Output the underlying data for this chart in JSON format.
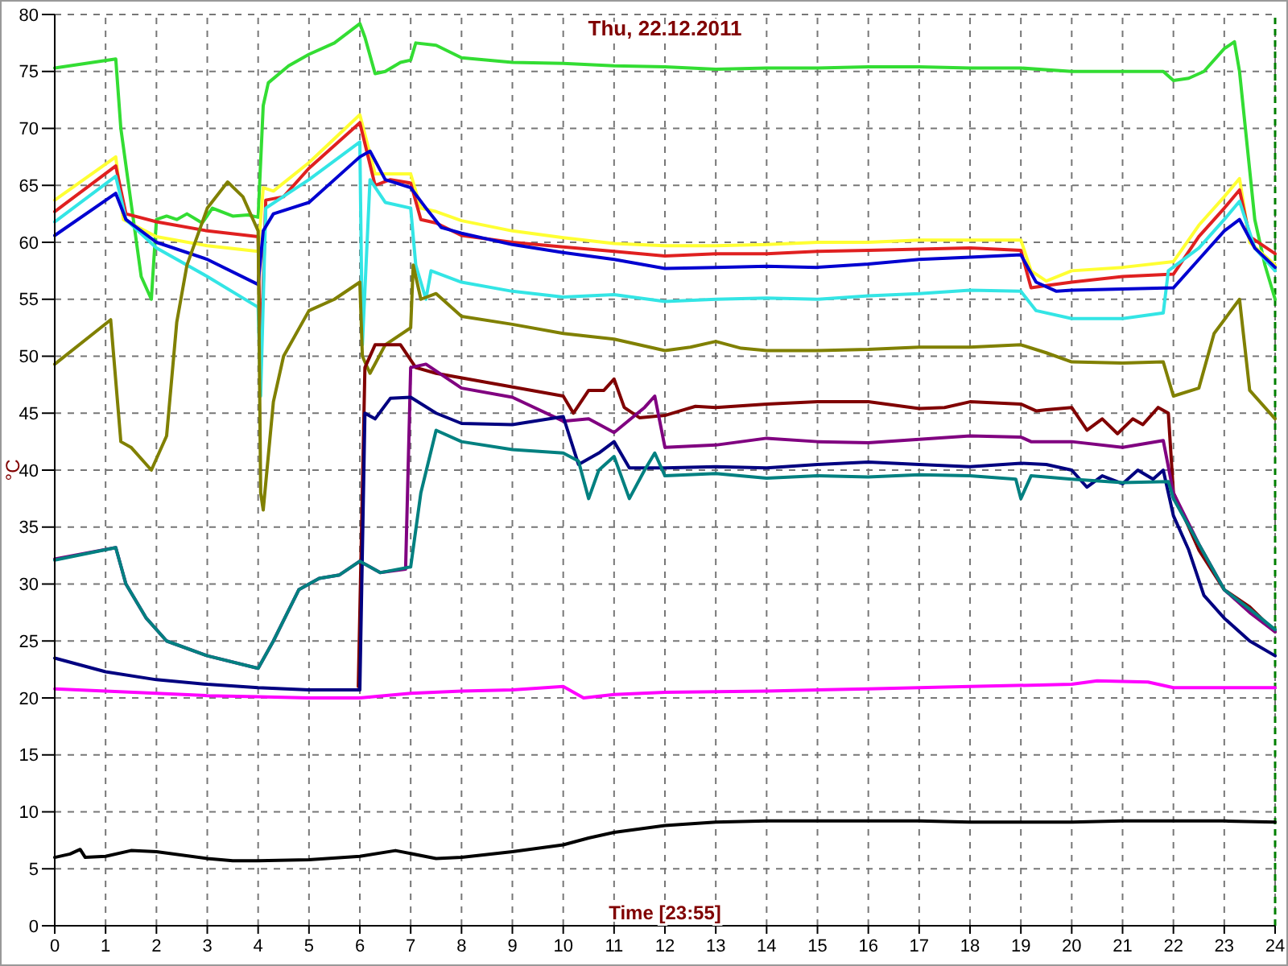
{
  "chart_data": {
    "type": "line",
    "title": "Thu, 22.12.2011",
    "xlabel": "Time [23:55]",
    "ylabel": "°C",
    "xlim": [
      0,
      24
    ],
    "ylim": [
      0,
      80
    ],
    "xticks": [
      0,
      1,
      2,
      3,
      4,
      5,
      6,
      7,
      8,
      9,
      10,
      11,
      12,
      13,
      14,
      15,
      16,
      17,
      18,
      19,
      20,
      21,
      22,
      23,
      24
    ],
    "yticks": [
      0,
      5,
      10,
      15,
      20,
      25,
      30,
      35,
      40,
      45,
      50,
      55,
      60,
      65,
      70,
      75,
      80
    ],
    "grid": true,
    "line_style": "solid",
    "marker": "none",
    "ref_lines": [
      {
        "axis": "x",
        "value": 24,
        "color": "#008000",
        "line_style": "dashed"
      }
    ],
    "series": [
      {
        "color": "#33dd33",
        "x": [
          0,
          1.2,
          1.3,
          1.7,
          1.9,
          2,
          2.2,
          2.4,
          2.6,
          2.9,
          3.1,
          3.5,
          3.8,
          4,
          4.1,
          4.2,
          4.6,
          5,
          5.5,
          6,
          6.1,
          6.3,
          6.5,
          6.8,
          7,
          7.1,
          7.5,
          8,
          9,
          10,
          11,
          12,
          13,
          14,
          15,
          16,
          17,
          18,
          19,
          20,
          21,
          21.8,
          22,
          22.3,
          22.6,
          23,
          23.2,
          23.3,
          23.6,
          23.8,
          24
        ],
        "values": [
          75.3,
          76.1,
          70,
          57,
          55,
          62,
          62.3,
          62,
          62.5,
          61.7,
          63,
          62.3,
          62.4,
          62.2,
          72,
          74,
          75.5,
          76.5,
          77.5,
          79.2,
          78,
          74.8,
          75,
          75.8,
          76,
          77.5,
          77.3,
          76.2,
          75.8,
          75.7,
          75.5,
          75.4,
          75.2,
          75.3,
          75.3,
          75.4,
          75.4,
          75.3,
          75.3,
          75,
          75,
          75,
          74.2,
          74.4,
          75,
          77,
          77.6,
          75,
          62,
          58,
          55
        ]
      },
      {
        "color": "#ffff33",
        "x": [
          0,
          1.2,
          1.35,
          2,
          3,
          4,
          4.1,
          4.3,
          5,
          6,
          6.3,
          7,
          7.2,
          7.5,
          8,
          9,
          10,
          11,
          12,
          13,
          14,
          15,
          16,
          17,
          18,
          19,
          19.2,
          19.5,
          20,
          21,
          22,
          22.5,
          23,
          23.3,
          23.5,
          24
        ],
        "values": [
          63.7,
          67.5,
          62,
          60.5,
          59.7,
          59.2,
          64.8,
          64.5,
          67,
          71.2,
          66,
          66,
          63,
          62.7,
          61.9,
          61,
          60.4,
          59.9,
          59.7,
          59.7,
          59.8,
          60,
          60,
          60.2,
          60.2,
          60.2,
          57.5,
          56.6,
          57.5,
          57.8,
          58.3,
          61.5,
          64,
          65.6,
          60,
          58
        ]
      },
      {
        "color": "#e02020",
        "x": [
          0,
          1.2,
          1.4,
          2,
          3,
          4,
          4.05,
          4.15,
          4.5,
          5,
          6,
          6.3,
          6.6,
          7,
          7.2,
          7.5,
          8,
          9,
          10,
          11,
          12,
          13,
          14,
          15,
          16,
          17,
          18,
          19,
          19.2,
          19.5,
          20,
          21,
          22,
          22.5,
          23,
          23.3,
          23.5,
          24
        ],
        "values": [
          62.7,
          66.7,
          62.5,
          61.8,
          61,
          60.5,
          49,
          63.7,
          64,
          66.5,
          70.5,
          65,
          65.5,
          65.2,
          62,
          61.7,
          60.6,
          60,
          59.6,
          59.2,
          58.8,
          59,
          59,
          59.2,
          59.3,
          59.4,
          59.5,
          59.3,
          56,
          56.2,
          56.5,
          57,
          57.2,
          60.5,
          63,
          64.6,
          60.5,
          59
        ]
      },
      {
        "color": "#33e5e5",
        "x": [
          0,
          1.2,
          1.4,
          2,
          3,
          4,
          4.05,
          4.15,
          5,
          6,
          6.05,
          6.2,
          6.5,
          7,
          7.1,
          7.3,
          7.4,
          8,
          9,
          10,
          11,
          12,
          13,
          14,
          15,
          16,
          17,
          18,
          19,
          19.3,
          20,
          21,
          21.8,
          21.9,
          22.5,
          23,
          23.3,
          23.6,
          24
        ],
        "values": [
          61.8,
          65.8,
          62,
          59.5,
          57,
          54.3,
          46.5,
          63,
          65.5,
          68.8,
          51,
          65.5,
          63.5,
          63,
          58,
          55,
          57.5,
          56.5,
          55.7,
          55.2,
          55.4,
          54.8,
          55,
          55.1,
          55,
          55.3,
          55.5,
          55.8,
          55.7,
          54,
          53.3,
          53.3,
          53.8,
          57.5,
          59.5,
          62,
          63.6,
          59.5,
          57.5
        ]
      },
      {
        "color": "#0000d0",
        "x": [
          0,
          1.2,
          1.4,
          2,
          3,
          4,
          4.1,
          4.3,
          5,
          6,
          6.2,
          6.5,
          7,
          7.3,
          7.6,
          8,
          9,
          10,
          11,
          12,
          13,
          14,
          15,
          16,
          17,
          18,
          19,
          19.3,
          19.7,
          20,
          21,
          22,
          22.5,
          23,
          23.3,
          23.6,
          24
        ],
        "values": [
          60.6,
          64.3,
          62,
          60,
          58.5,
          56.3,
          61,
          62.5,
          63.5,
          67.5,
          68,
          65.5,
          64.8,
          63,
          61.3,
          60.8,
          59.8,
          59.1,
          58.5,
          57.7,
          57.8,
          57.9,
          57.8,
          58.1,
          58.5,
          58.7,
          58.9,
          56.5,
          55.7,
          55.8,
          55.9,
          56,
          58.5,
          61,
          62,
          59.5,
          57.8
        ]
      },
      {
        "color": "#808000",
        "x": [
          0,
          1.1,
          1.3,
          1.5,
          1.9,
          2.2,
          2.4,
          2.6,
          3,
          3.4,
          3.7,
          3.9,
          4,
          4.05,
          4.1,
          4.3,
          4.5,
          5,
          5.5,
          6,
          6.05,
          6.2,
          6.5,
          7,
          7.05,
          7.2,
          7.5,
          8,
          9,
          10,
          11,
          12,
          12.5,
          13,
          13.5,
          14,
          15,
          16,
          17,
          18,
          19,
          19.5,
          20,
          21,
          21.8,
          22,
          22.5,
          22.8,
          23.3,
          23.5,
          24
        ],
        "values": [
          49.3,
          53.2,
          42.5,
          42,
          40,
          43,
          53,
          58,
          63,
          65.3,
          64,
          62,
          61,
          38,
          36.5,
          46,
          50,
          54,
          55,
          56.5,
          50,
          48.5,
          51,
          52.5,
          58,
          55,
          55.5,
          53.5,
          52.8,
          52,
          51.5,
          50.5,
          50.8,
          51.3,
          50.7,
          50.5,
          50.5,
          50.6,
          50.8,
          50.8,
          51,
          50.3,
          49.5,
          49.4,
          49.5,
          46.5,
          47.2,
          52,
          55,
          47,
          44.5
        ]
      },
      {
        "color": "#800000",
        "x": [
          5.97,
          6.1,
          6.3,
          6.8,
          7.1,
          7.5,
          10,
          10.2,
          10.5,
          10.8,
          11,
          11.2,
          11.5,
          12,
          12.3,
          12.6,
          13,
          14,
          15,
          16,
          17,
          17.5,
          18,
          19,
          19.3,
          19.5,
          20,
          20.3,
          20.6,
          20.9,
          21.2,
          21.4,
          21.7,
          21.9,
          22,
          22.5,
          23,
          23.5,
          24
        ],
        "values": [
          21,
          49,
          51,
          51,
          49,
          48.5,
          46.5,
          45,
          47,
          47,
          48,
          45.5,
          44.6,
          44.8,
          45.2,
          45.6,
          45.5,
          45.8,
          46,
          46,
          45.4,
          45.5,
          46,
          45.8,
          45.2,
          45.3,
          45.5,
          43.5,
          44.5,
          43.2,
          44.5,
          44,
          45.5,
          45,
          38,
          33,
          29.5,
          28,
          25.8
        ]
      },
      {
        "color": "#800080",
        "x": [
          0,
          1.2,
          1.4,
          1.8,
          2.2,
          3,
          4,
          4.3,
          4.8,
          5.2,
          5.6,
          6,
          6.4,
          6.9,
          7,
          7.3,
          8,
          9,
          10,
          10.5,
          11,
          11.6,
          11.8,
          12,
          13,
          14,
          15,
          16,
          17,
          18,
          19,
          19.2,
          20,
          21,
          21.8,
          22,
          22.5,
          23,
          23.5,
          24
        ],
        "values": [
          32.2,
          33.2,
          30,
          27,
          25,
          23.7,
          22.6,
          25,
          29.5,
          30.5,
          30.8,
          32,
          31,
          31.3,
          49,
          49.3,
          47.2,
          46.4,
          44.3,
          44.5,
          43.3,
          45.5,
          46.5,
          42,
          42.2,
          42.8,
          42.5,
          42.4,
          42.7,
          43,
          42.9,
          42.5,
          42.5,
          42,
          42.6,
          38,
          33.5,
          29.5,
          27.5,
          25.8
        ]
      },
      {
        "color": "#000080",
        "x": [
          0,
          1,
          2,
          3,
          4,
          5,
          6,
          6.1,
          6.3,
          6.6,
          7,
          7.5,
          8,
          9,
          10,
          10.3,
          10.7,
          11,
          11.3,
          12,
          13,
          14,
          15,
          16,
          17,
          18,
          19,
          19.5,
          20,
          20.3,
          20.6,
          21,
          21.3,
          21.6,
          21.8,
          22,
          22.3,
          22.6,
          23,
          23.5,
          24
        ],
        "values": [
          23.5,
          22.3,
          21.6,
          21.2,
          20.9,
          20.7,
          20.7,
          45,
          44.5,
          46.3,
          46.4,
          45,
          44.1,
          44,
          44.7,
          40.5,
          41.5,
          42.5,
          40.2,
          40.2,
          40.3,
          40.2,
          40.5,
          40.7,
          40.5,
          40.3,
          40.6,
          40.5,
          40,
          38.5,
          39.5,
          38.8,
          40,
          39.2,
          40,
          36,
          33,
          29,
          27,
          25,
          23.7
        ]
      },
      {
        "color": "#008080",
        "x": [
          0,
          1.2,
          1.4,
          1.8,
          2.2,
          3,
          4,
          4.3,
          4.8,
          5.2,
          5.6,
          6,
          6.4,
          7,
          7.2,
          7.5,
          8,
          9,
          10,
          10.3,
          10.5,
          10.7,
          11,
          11.3,
          11.6,
          11.8,
          12,
          13,
          14,
          15,
          16,
          17,
          18,
          18.9,
          19,
          19.2,
          20,
          21,
          21.9,
          22,
          22.5,
          23,
          23.5,
          24
        ],
        "values": [
          32.1,
          33.2,
          30,
          27,
          25,
          23.7,
          22.6,
          25,
          29.5,
          30.5,
          30.8,
          32,
          31,
          31.5,
          38,
          43.5,
          42.5,
          41.8,
          41.5,
          40.8,
          37.5,
          40,
          41.2,
          37.5,
          40,
          41.5,
          39.5,
          39.7,
          39.3,
          39.5,
          39.4,
          39.6,
          39.5,
          39.2,
          37.5,
          39.5,
          39.2,
          38.9,
          39,
          37.5,
          33.5,
          29.5,
          27.8,
          26
        ]
      },
      {
        "color": "#ff00ff",
        "x": [
          0,
          1,
          2,
          3,
          4,
          5,
          6,
          7,
          8,
          9,
          10,
          10.4,
          11,
          12,
          14,
          16,
          18,
          20,
          20.5,
          21.5,
          22,
          23,
          24
        ],
        "values": [
          20.8,
          20.6,
          20.4,
          20.2,
          20.1,
          20,
          20,
          20.4,
          20.6,
          20.7,
          21,
          20,
          20.3,
          20.5,
          20.6,
          20.8,
          21,
          21.2,
          21.5,
          21.4,
          20.9,
          20.9,
          20.9
        ]
      },
      {
        "color": "#000000",
        "x": [
          0,
          0.3,
          0.5,
          0.6,
          1,
          1.5,
          2,
          3,
          3.5,
          4,
          5,
          6,
          6.7,
          7.5,
          8,
          9,
          10,
          10.5,
          11,
          12,
          13,
          14,
          15,
          16,
          17,
          18,
          19,
          20,
          21,
          22,
          23,
          24
        ],
        "values": [
          6,
          6.3,
          6.7,
          6,
          6.1,
          6.6,
          6.5,
          5.9,
          5.7,
          5.7,
          5.8,
          6.1,
          6.6,
          5.9,
          6,
          6.5,
          7.1,
          7.7,
          8.2,
          8.8,
          9.1,
          9.2,
          9.2,
          9.2,
          9.2,
          9.1,
          9.1,
          9.1,
          9.2,
          9.2,
          9.2,
          9.1
        ]
      }
    ]
  }
}
